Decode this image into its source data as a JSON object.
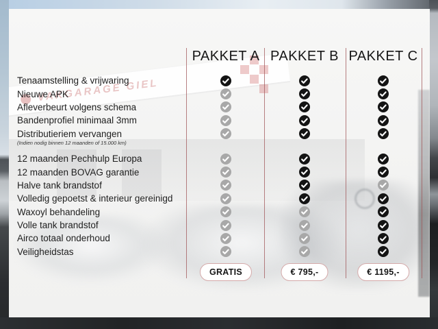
{
  "table": {
    "packages": [
      {
        "name": "PAKKET A",
        "price": "GRATIS"
      },
      {
        "name": "PAKKET B",
        "price": "€ 795,-"
      },
      {
        "name": "PAKKET C",
        "price": "€ 1195,-"
      }
    ],
    "features": [
      {
        "label": "Tenaamstelling & vrijwaring",
        "included": [
          true,
          true,
          true
        ]
      },
      {
        "label": "Nieuwe APK",
        "included": [
          false,
          true,
          true
        ]
      },
      {
        "label": "Afleverbeurt volgens schema",
        "included": [
          false,
          true,
          true
        ]
      },
      {
        "label": "Bandenprofiel minimaal 3mm",
        "included": [
          false,
          true,
          true
        ]
      },
      {
        "label": "Distributieriem vervangen",
        "note": "(Indien nodig binnen 12 maanden of 15.000 km)",
        "included": [
          false,
          true,
          true
        ]
      },
      {
        "label": "12 maanden Pechhulp Europa",
        "included": [
          false,
          true,
          true
        ]
      },
      {
        "label": "12 maanden BOVAG garantie",
        "included": [
          false,
          true,
          true
        ]
      },
      {
        "label": "Halve tank brandstof",
        "included": [
          false,
          true,
          false
        ]
      },
      {
        "label": "Volledig gepoetst & interieur gereinigd",
        "included": [
          false,
          true,
          true
        ]
      },
      {
        "label": "Waxoyl behandeling",
        "included": [
          false,
          false,
          true
        ]
      },
      {
        "label": "Volle tank brandstof",
        "included": [
          false,
          false,
          true
        ]
      },
      {
        "label": "Airco totaal onderhoud",
        "included": [
          false,
          false,
          true
        ]
      },
      {
        "label": "Veiligheidstas",
        "included": [
          false,
          false,
          true
        ]
      }
    ]
  },
  "background": {
    "brand_text": "VAKGARAGE GIEL"
  },
  "colors": {
    "check_included": "#141414",
    "check_excluded": "#a8a8a8",
    "check_mark": "#ffffff",
    "divider_red": "#a05558",
    "pill_border": "#d4a9a9"
  }
}
